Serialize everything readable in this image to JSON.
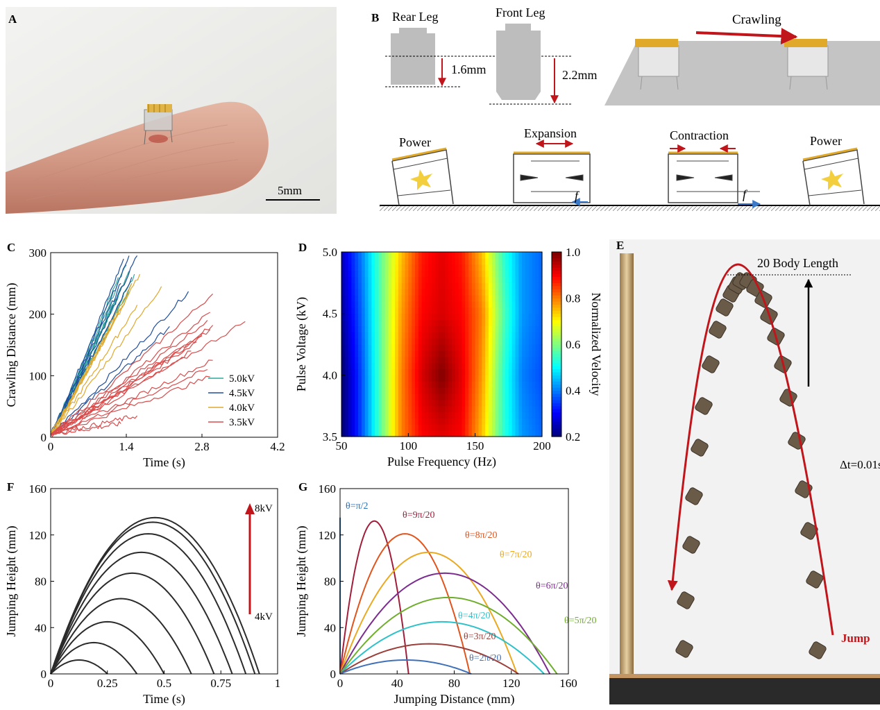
{
  "panels": {
    "A": {
      "label": "A",
      "scale_bar": "5mm"
    },
    "B": {
      "label": "B",
      "rear_leg": "Rear Leg",
      "front_leg": "Front Leg",
      "rear_height": "1.6mm",
      "front_height": "2.2mm",
      "crawling": "Crawling",
      "phases": [
        "Power",
        "Expansion",
        "Contraction",
        "Power"
      ],
      "friction": "f"
    },
    "C": {
      "label": "C"
    },
    "D": {
      "label": "D"
    },
    "E": {
      "label": "E",
      "body_length": "20 Body Length",
      "dt": "Δt=0.01s",
      "jump": "Jump"
    },
    "F": {
      "label": "F"
    },
    "G": {
      "label": "G"
    }
  },
  "chart_data": [
    {
      "id": "C",
      "type": "line",
      "xlabel": "Time (s)",
      "ylabel": "Crawling Distance (mm)",
      "xlim": [
        0,
        4.2
      ],
      "ylim": [
        0,
        300
      ],
      "xticks": [
        "0",
        "1.4",
        "2.8",
        "4.2"
      ],
      "yticks": [
        "0",
        "100",
        "200",
        "300"
      ],
      "legend_position": "bottom-right",
      "series": [
        {
          "name": "5.0kV",
          "color": "#2ea89a",
          "endpoints": [
            [
              1.25,
              260
            ],
            [
              1.4,
              280
            ],
            [
              1.5,
              250
            ],
            [
              1.3,
              240
            ],
            [
              1.45,
              270
            ],
            [
              1.35,
              230
            ],
            [
              1.2,
              225
            ],
            [
              1.55,
              265
            ]
          ]
        },
        {
          "name": "4.5kV",
          "color": "#1f4e9b",
          "endpoints": [
            [
              1.45,
              295
            ],
            [
              1.35,
              290
            ],
            [
              1.6,
              295
            ],
            [
              2.55,
              237
            ],
            [
              2.2,
              180
            ],
            [
              1.5,
              260
            ],
            [
              1.3,
              250
            ]
          ]
        },
        {
          "name": "4.0kV",
          "color": "#e0a82e",
          "endpoints": [
            [
              2.05,
              245
            ],
            [
              1.65,
              265
            ],
            [
              1.5,
              250
            ],
            [
              1.45,
              235
            ],
            [
              1.6,
              215
            ],
            [
              1.3,
              210
            ],
            [
              1.25,
              200
            ]
          ]
        },
        {
          "name": "3.5kV",
          "color": "#d84c4c",
          "endpoints": [
            [
              3.0,
              233
            ],
            [
              2.95,
              203
            ],
            [
              2.9,
              190
            ],
            [
              3.0,
              182
            ],
            [
              2.95,
              175
            ],
            [
              3.6,
              188
            ],
            [
              2.8,
              165
            ],
            [
              3.0,
              125
            ],
            [
              2.95,
              98
            ],
            [
              1.3,
              22
            ],
            [
              2.9,
              110
            ],
            [
              2.6,
              140
            ],
            [
              2.7,
              155
            ],
            [
              1.6,
              35
            ]
          ]
        }
      ]
    },
    {
      "id": "D",
      "type": "heatmap",
      "xlabel": "Pulse Frequency (Hz)",
      "ylabel": "Pulse Voltage (kV)",
      "colorbar_label": "Normalized Velocity",
      "xlim": [
        50,
        200
      ],
      "ylim": [
        3.5,
        5.0
      ],
      "xticks": [
        "50",
        "100",
        "150",
        "200"
      ],
      "yticks": [
        "3.5",
        "4.0",
        "4.5",
        "5.0"
      ],
      "cticks": [
        "0.2",
        "0.4",
        "0.6",
        "0.8",
        "1.0"
      ],
      "x": [
        50,
        65,
        80,
        95,
        110,
        125,
        140,
        155,
        170,
        185,
        200
      ],
      "rows": [
        {
          "voltage": 5.0,
          "values": [
            0.25,
            0.4,
            0.58,
            0.75,
            0.88,
            0.92,
            0.88,
            0.75,
            0.55,
            0.42,
            0.38
          ]
        },
        {
          "voltage": 4.5,
          "values": [
            0.22,
            0.38,
            0.58,
            0.78,
            0.9,
            0.93,
            0.9,
            0.8,
            0.58,
            0.42,
            0.38
          ]
        },
        {
          "voltage": 4.0,
          "values": [
            0.18,
            0.36,
            0.58,
            0.8,
            0.93,
            1.0,
            0.92,
            0.78,
            0.55,
            0.4,
            0.36
          ]
        },
        {
          "voltage": 3.5,
          "values": [
            0.18,
            0.36,
            0.58,
            0.8,
            0.9,
            0.92,
            0.9,
            0.75,
            0.55,
            0.42,
            0.38
          ]
        }
      ]
    },
    {
      "id": "F",
      "type": "line",
      "xlabel": "Time (s)",
      "ylabel": "Jumping Height (mm)",
      "xlim": [
        0,
        1
      ],
      "ylim": [
        0,
        160
      ],
      "xticks": [
        "0",
        "0.25",
        "0.5",
        "0.75",
        "1"
      ],
      "yticks": [
        "0",
        "40",
        "80",
        "120",
        "160"
      ],
      "arrow_top": "8kV",
      "arrow_bottom": "4kV",
      "series": [
        {
          "peak_time": 0.125,
          "peak_height": 12
        },
        {
          "peak_time": 0.19,
          "peak_height": 27
        },
        {
          "peak_time": 0.25,
          "peak_height": 45
        },
        {
          "peak_time": 0.31,
          "peak_height": 65
        },
        {
          "peak_time": 0.36,
          "peak_height": 87
        },
        {
          "peak_time": 0.4,
          "peak_height": 105
        },
        {
          "peak_time": 0.43,
          "peak_height": 121
        },
        {
          "peak_time": 0.45,
          "peak_height": 131
        },
        {
          "peak_time": 0.46,
          "peak_height": 135
        }
      ]
    },
    {
      "id": "G",
      "type": "line",
      "xlabel": "Jumping Distance (mm)",
      "ylabel": "Jumping Height (mm)",
      "xlim": [
        0,
        160
      ],
      "ylim": [
        0,
        160
      ],
      "xticks": [
        "0",
        "40",
        "80",
        "120",
        "160"
      ],
      "yticks": [
        "0",
        "40",
        "80",
        "120",
        "160"
      ],
      "series": [
        {
          "name": "θ=π/2",
          "color": "#2a6fb5",
          "range": 0,
          "peak_height": 135
        },
        {
          "name": "θ=9π/20",
          "color": "#a11d3a",
          "range": 48,
          "peak_height": 132
        },
        {
          "name": "θ=8π/20",
          "color": "#e0541d",
          "range": 91,
          "peak_height": 121
        },
        {
          "name": "θ=7π/20",
          "color": "#eaa921",
          "range": 124,
          "peak_height": 105
        },
        {
          "name": "θ=6π/20",
          "color": "#7b2c8e",
          "range": 147,
          "peak_height": 87
        },
        {
          "name": "θ=5π/20",
          "color": "#6fae2d",
          "range": 152,
          "peak_height": 66
        },
        {
          "name": "θ=4π/20",
          "color": "#2ec1c9",
          "range": 143,
          "peak_height": 45
        },
        {
          "name": "θ=3π/20",
          "color": "#9b3f3a",
          "range": 125,
          "peak_height": 26
        },
        {
          "name": "θ=2π/20",
          "color": "#4070b8",
          "range": 92,
          "peak_height": 12
        }
      ]
    }
  ],
  "colors": {
    "red_arrow": "#c0151b",
    "gold": "#d99a1e",
    "leg_grey": "#bdbdbd"
  }
}
